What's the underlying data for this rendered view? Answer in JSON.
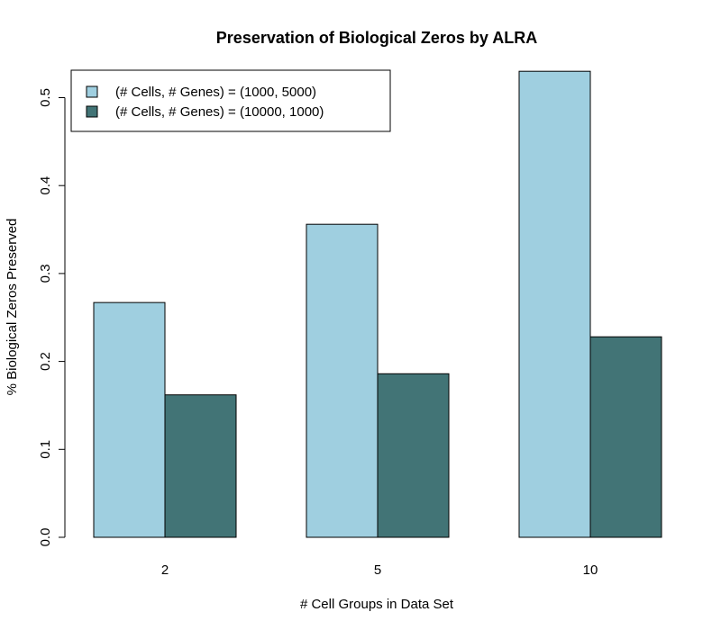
{
  "chart_data": {
    "type": "bar",
    "title": "Preservation of Biological Zeros by ALRA",
    "xlabel": "# Cell Groups in Data Set",
    "ylabel": "% Biological Zeros Preserved",
    "categories": [
      "2",
      "5",
      "10"
    ],
    "series": [
      {
        "name": "(# Cells, # Genes) = (1000, 5000)",
        "color": "#9fcfe0",
        "values": [
          0.267,
          0.356,
          0.53
        ]
      },
      {
        "name": "(# Cells, # Genes) = (10000, 1000)",
        "color": "#427476",
        "values": [
          0.162,
          0.186,
          0.228
        ]
      }
    ],
    "ylim": [
      0,
      0.5
    ],
    "yticks": [
      "0.0",
      "0.1",
      "0.2",
      "0.3",
      "0.4",
      "0.5"
    ],
    "legend_position": "top-left",
    "grid": false
  }
}
